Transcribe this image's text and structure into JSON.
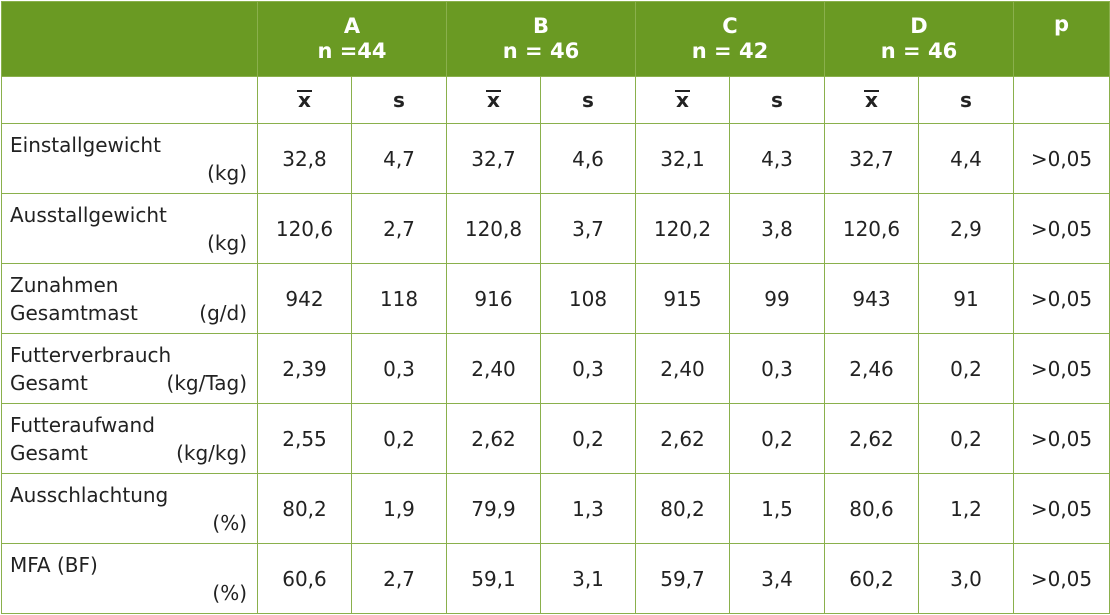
{
  "header": {
    "groups": [
      {
        "name": "A",
        "n": "n =44"
      },
      {
        "name": "B",
        "n": "n = 46"
      },
      {
        "name": "C",
        "n": "n = 42"
      },
      {
        "name": "D",
        "n": "n = 46"
      }
    ],
    "p_label": "p"
  },
  "subheader": {
    "mean_symbol": "x",
    "sd_symbol": "s"
  },
  "rows": [
    {
      "line1": "Einstallgewicht",
      "line2": "",
      "unit": "(kg)",
      "values": [
        "32,8",
        "4,7",
        "32,7",
        "4,6",
        "32,1",
        "4,3",
        "32,7",
        "4,4"
      ],
      "p": ">0,05"
    },
    {
      "line1": "Ausstallgewicht",
      "line2": "",
      "unit": "(kg)",
      "values": [
        "120,6",
        "2,7",
        "120,8",
        "3,7",
        "120,2",
        "3,8",
        "120,6",
        "2,9"
      ],
      "p": ">0,05"
    },
    {
      "line1": "Zunahmen",
      "line2": "Gesamtmast",
      "unit": "(g/d)",
      "values": [
        "942",
        "118",
        "916",
        "108",
        "915",
        "99",
        "943",
        "91"
      ],
      "p": ">0,05"
    },
    {
      "line1": "Futterverbrauch",
      "line2": "Gesamt",
      "unit": "(kg/Tag)",
      "values": [
        "2,39",
        "0,3",
        "2,40",
        "0,3",
        "2,40",
        "0,3",
        "2,46",
        "0,2"
      ],
      "p": ">0,05"
    },
    {
      "line1": "Futteraufwand",
      "line2": "Gesamt",
      "unit": "(kg/kg)",
      "values": [
        "2,55",
        "0,2",
        "2,62",
        "0,2",
        "2,62",
        "0,2",
        "2,62",
        "0,2"
      ],
      "p": ">0,05"
    },
    {
      "line1": "Ausschlachtung",
      "line2": "",
      "unit": "(%)",
      "values": [
        "80,2",
        "1,9",
        "79,9",
        "1,3",
        "80,2",
        "1,5",
        "80,6",
        "1,2"
      ],
      "p": ">0,05"
    },
    {
      "line1": "MFA (BF)",
      "line2": "",
      "unit": "(%)",
      "values": [
        "60,6",
        "2,7",
        "59,1",
        "3,1",
        "59,7",
        "3,4",
        "60,2",
        "3,0"
      ],
      "p": ">0,05"
    }
  ]
}
